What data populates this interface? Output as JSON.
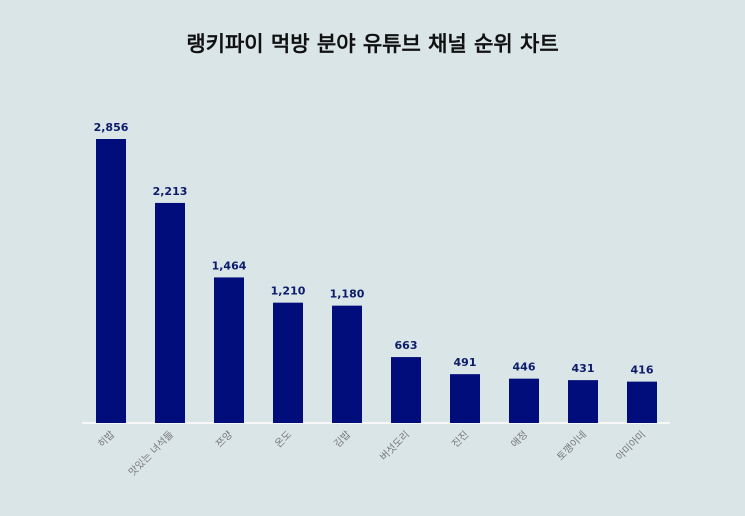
{
  "title": "랭키파이 먹방 분야 유튜브 채널 순위 차트",
  "chart_data": {
    "type": "bar",
    "title": "랭키파이 먹방 분야 유튜브 채널 순위 차트",
    "categories": [
      "히밥",
      "맛있는 녀석들",
      "쯔양",
      "온도",
      "김밥",
      "버섯도리",
      "진진",
      "애정",
      "토깽이네",
      "아미아미"
    ],
    "values": [
      2856,
      2213,
      1464,
      1210,
      1180,
      663,
      491,
      446,
      431,
      416
    ],
    "value_labels": [
      "2,856",
      "2,213",
      "1,464",
      "1,210",
      "1,180",
      "663",
      "491",
      "446",
      "431",
      "416"
    ],
    "ylim": [
      0,
      2856
    ],
    "grid": false,
    "legend": "none",
    "bar_color": "#000d7a"
  }
}
